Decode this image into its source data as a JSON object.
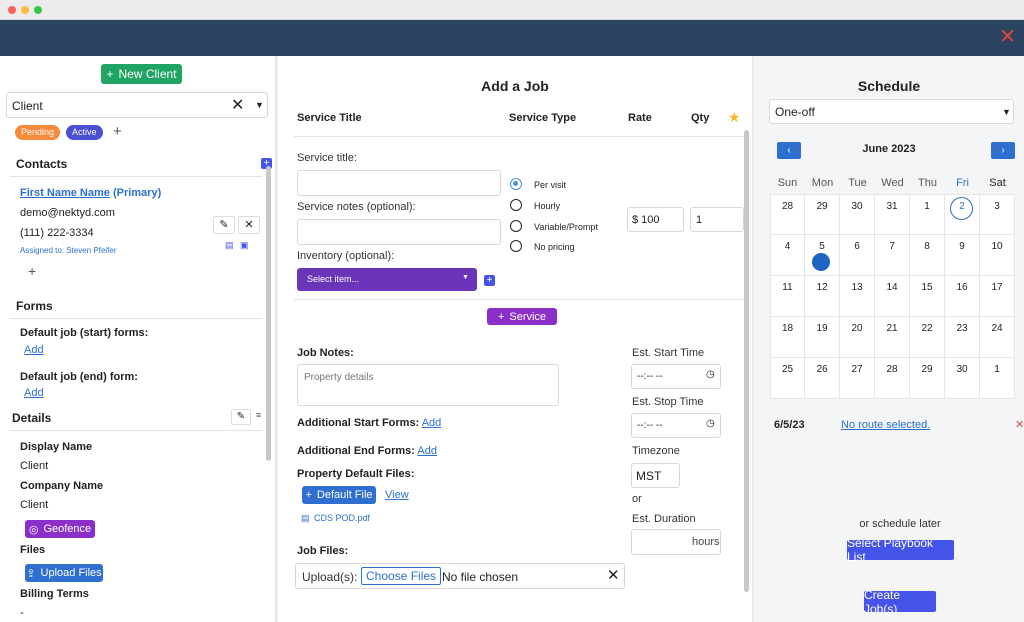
{
  "client": {
    "new_client_label": "New Client",
    "select_value": "Client",
    "tags": [
      "Pending",
      "Active"
    ],
    "contacts_heading": "Contacts",
    "contact": {
      "name": "First Name Name",
      "role": "(Primary)",
      "email": "demo@nektyd.com",
      "phone": "(111) 222-3334",
      "assigned": "Assigned to: Steven Pfeifer"
    },
    "forms_heading": "Forms",
    "default_start_forms": "Default job (start) forms:",
    "default_end_form": "Default job (end) form:",
    "add_label": "Add",
    "details_heading": "Details",
    "display_name_label": "Display Name",
    "display_name_value": "Client",
    "company_name_label": "Company Name",
    "company_name_value": "Client",
    "geofence_label": "Geofence",
    "files_label": "Files",
    "upload_files_label": "Upload Files",
    "billing_terms_label": "Billing Terms",
    "billing_terms_value": "-"
  },
  "job": {
    "title": "Add a Job",
    "columns": {
      "service_title": "Service Title",
      "service_type": "Service Type",
      "rate": "Rate",
      "qty": "Qty"
    },
    "service_title_label": "Service title:",
    "service_notes_label": "Service notes (optional):",
    "inventory_label": "Inventory (optional):",
    "inventory_select": "Select item...",
    "service_types": [
      "Per visit",
      "Hourly",
      "Variable/Prompt",
      "No pricing"
    ],
    "rate_value": "$ 100",
    "qty_value": "1",
    "add_service_label": "Service",
    "job_notes_label": "Job Notes:",
    "job_notes_placeholder": "Property details",
    "additional_start_forms": "Additional Start Forms:",
    "additional_end_forms": "Additional End Forms:",
    "add_label": "Add",
    "property_default_files": "Property Default Files:",
    "default_file_label": "Default File",
    "view_label": "View",
    "file_name": "CDS POD.pdf",
    "job_files_label": "Job Files:",
    "uploads_label": "Upload(s):",
    "choose_files_label": "Choose Files",
    "no_file_label": "No file chosen",
    "est_start_label": "Est. Start Time",
    "est_start_value": "--:-- --",
    "est_stop_label": "Est. Stop Time",
    "est_stop_value": "--:-- --",
    "timezone_label": "Timezone",
    "timezone_value": "MST",
    "or_label": "or",
    "est_duration_label": "Est. Duration",
    "hours_label": "hours"
  },
  "schedule": {
    "title": "Schedule",
    "frequency": "One-off",
    "month": "June 2023",
    "weekdays": [
      "Sun",
      "Mon",
      "Tue",
      "Wed",
      "Thu",
      "Fri",
      "Sat"
    ],
    "weeks": [
      [
        "28",
        "29",
        "30",
        "31",
        "1",
        "2",
        "3"
      ],
      [
        "4",
        "5",
        "6",
        "7",
        "8",
        "9",
        "10"
      ],
      [
        "11",
        "12",
        "13",
        "14",
        "15",
        "16",
        "17"
      ],
      [
        "18",
        "19",
        "20",
        "21",
        "22",
        "23",
        "24"
      ],
      [
        "25",
        "26",
        "27",
        "28",
        "29",
        "30",
        "1"
      ]
    ],
    "selected_date": "6/5/23",
    "route_text": "No route selected.",
    "or_schedule_later": "or schedule later",
    "playbook_label": "Select Playbook List",
    "create_label": "Create Job(s)"
  },
  "colors": {
    "header": "#2c4461",
    "accent_blue": "#2f6fd0",
    "purple": "#8a30c9",
    "green": "#1fa463",
    "pending": "#f58a3c",
    "active": "#4b4fd1"
  }
}
